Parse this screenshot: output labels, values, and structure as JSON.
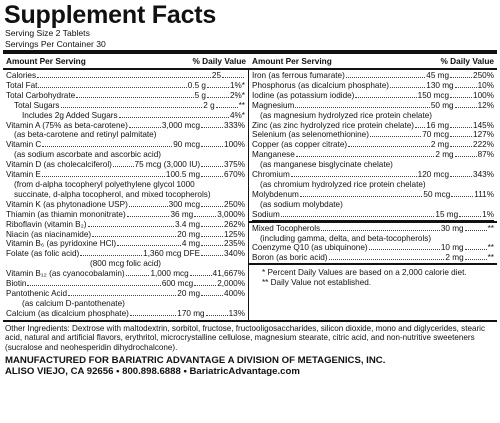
{
  "title": "Supplement Facts",
  "serving_size": "Serving Size 2 Tablets",
  "servings_per_container": "Servings Per Container 30",
  "header": {
    "amount": "Amount Per Serving",
    "dv": "% Daily Value"
  },
  "left": [
    {
      "name": "Calories",
      "amount": "25",
      "dv": "",
      "indent": 0
    },
    {
      "name": "Total Fat",
      "amount": "0.5 g",
      "dv": "1%*",
      "indent": 0
    },
    {
      "name": "Total Carbohydrate",
      "amount": "5 g",
      "dv": "2%*",
      "indent": 0
    },
    {
      "name": "Total Sugars",
      "amount": "2 g",
      "dv": "**",
      "indent": 1
    },
    {
      "name": "Includes 2g Added Sugars",
      "amount": "",
      "dv": "4%*",
      "indent": 2
    },
    {
      "name": "Vitamin A (75% as beta-carotene)",
      "amount": "3,000 mcg",
      "dv": "333%",
      "indent": 0
    },
    {
      "sub": "(as beta-carotene and retinyl palmitate)"
    },
    {
      "name": "Vitamin C",
      "amount": "90 mcg",
      "dv": "100%",
      "indent": 0
    },
    {
      "sub": "(as sodium ascorbate and ascorbic acid)"
    },
    {
      "name": "Vitamin D (as cholecalciferol)",
      "amount": "75 mcg (3,000 IU)",
      "dv": "375%",
      "indent": 0
    },
    {
      "name": "Vitamin E",
      "amount": "100.5 mg",
      "dv": "670%",
      "indent": 0
    },
    {
      "sub": "(from d-alpha tocopheryl polyethylene glycol 1000"
    },
    {
      "sub": "succinate, d-alpha tocopherol, and mixed tocopherols)"
    },
    {
      "name": "Vitamin K (as phytonadione USP)",
      "amount": "300 mcg",
      "dv": "250%",
      "indent": 0
    },
    {
      "name": "Thiamin (as thiamin mononitrate)",
      "amount": "36 mg",
      "dv": "3,000%",
      "indent": 0
    },
    {
      "name": "Riboflavin (vitamin B₂)",
      "amount": "3.4 mg",
      "dv": "262%",
      "indent": 0
    },
    {
      "name": "Niacin (as niacinamide)",
      "amount": "20 mg",
      "dv": "125%",
      "indent": 0
    },
    {
      "name": "Vitamin B₆ (as pyridoxine HCl)",
      "amount": "4 mg",
      "dv": "235%",
      "indent": 0
    },
    {
      "name": "Folate (as folic acid)",
      "amount": "1,360 mcg DFE",
      "dv": "340%",
      "indent": 0
    },
    {
      "sub": "(800 mcg folic acid)",
      "center": true
    },
    {
      "name": "Vitamin B₁₂ (as cyanocobalamin)",
      "amount": "1,000 mcg",
      "dv": "41,667%",
      "indent": 0
    },
    {
      "name": "Biotin",
      "amount": "600 mcg",
      "dv": "2,000%",
      "indent": 0
    },
    {
      "name": "Pantothenic Acid",
      "amount": "20 mg",
      "dv": "400%",
      "indent": 0
    },
    {
      "sub": "(as calcium D-pantothenate)",
      "indent": 2
    },
    {
      "name": "Calcium (as dicalcium phosphate)",
      "amount": "170 mg",
      "dv": "13%",
      "indent": 0
    }
  ],
  "right": [
    {
      "name": "Iron (as ferrous fumarate)",
      "amount": "45 mg",
      "dv": "250%"
    },
    {
      "name": "Phosphorus (as dicalcium phosphate)",
      "amount": "130 mg",
      "dv": "10%"
    },
    {
      "name": "Iodine (as potassium iodide)",
      "amount": "150 mcg",
      "dv": "100%"
    },
    {
      "name": "Magnesium",
      "amount": "50 mg",
      "dv": "12%"
    },
    {
      "sub": "(as magnesium hydrolyzed rice protein chelate)"
    },
    {
      "name": "Zinc (as zinc hydrolyzed rice protein chelate)",
      "amount": "16 mg",
      "dv": "145%"
    },
    {
      "name": "Selenium (as selenomethionine)",
      "amount": "70 mcg",
      "dv": "127%"
    },
    {
      "name": "Copper (as copper citrate)",
      "amount": "2 mg",
      "dv": "222%"
    },
    {
      "name": "Manganese",
      "amount": "2 mg",
      "dv": "87%"
    },
    {
      "sub": "(as manganese bisglycinate chelate)"
    },
    {
      "name": "Chromium",
      "amount": "120 mcg",
      "dv": "343%"
    },
    {
      "sub": "(as chromium hydrolyzed rice protein chelate)"
    },
    {
      "name": "Molybdenum",
      "amount": "50 mcg",
      "dv": "111%"
    },
    {
      "sub": "(as sodium molybdate)"
    },
    {
      "name": "Sodium",
      "amount": "15 mg",
      "dv": "1%"
    }
  ],
  "right2": [
    {
      "name": "Mixed Tocopherols",
      "amount": "30 mg",
      "dv": "**"
    },
    {
      "sub": "(including gamma, delta, and beta-tocopherols)"
    },
    {
      "name": "Coenzyme Q10 (as ubiquinone)",
      "amount": "10 mg",
      "dv": "**"
    },
    {
      "name": "Boron (as boric acid)",
      "amount": "2 mg",
      "dv": "**"
    }
  ],
  "notes": [
    "* Percent Daily Values are based on a 2,000 calorie diet.",
    "** Daily Value not established."
  ],
  "other_ingredients": "Other Ingredients: Dextrose with maltodextrin, sorbitol, fructose, fructooligosaccharides, silicon dioxide, mono and diglycerides, stearic acid, natural and artificial flavors, erythritol, microcrystalline cellulose, magnesium stearate, citric acid, and non-nutritive sweeteners (sucralose and neohesperidin dihydrochalcone).",
  "manufacturer": "MANUFACTURED FOR BARIATRIC ADVANTAGE A DIVISION OF METAGENICS, INC.",
  "address": "ALISO VIEJO, CA 92656 • 800.898.6888 • BariatricAdvantage.com"
}
